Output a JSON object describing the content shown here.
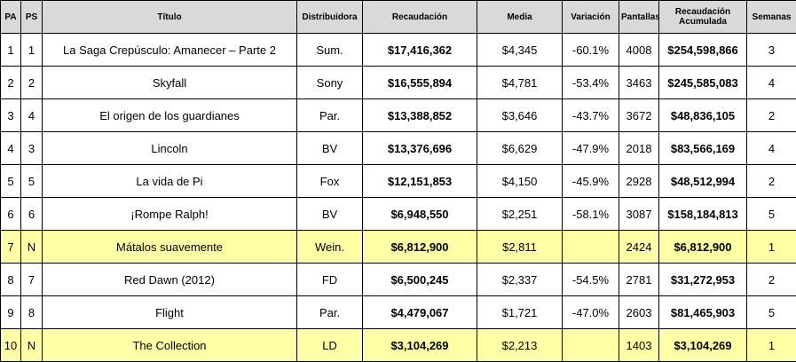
{
  "headers": {
    "pa": "PA",
    "ps": "PS",
    "title": "Título",
    "distributor": "Distribuidora",
    "gross": "Recaudación",
    "average": "Media",
    "change": "Variación",
    "screens": "Pantallas",
    "cumulative": "Recaudación Acumulada",
    "weeks": "Semanas"
  },
  "rows": [
    {
      "pa": "1",
      "ps": "1",
      "title": "La Saga Crepúsculo: Amanecer – Parte 2",
      "distributor": "Sum.",
      "gross": "$17,416,362",
      "average": "$4,345",
      "change": "-60.1%",
      "screens": "4008",
      "cumulative": "$254,598,866",
      "weeks": "3"
    },
    {
      "pa": "2",
      "ps": "2",
      "title": "Skyfall",
      "distributor": "Sony",
      "gross": "$16,555,894",
      "average": "$4,781",
      "change": "-53.4%",
      "screens": "3463",
      "cumulative": "$245,585,083",
      "weeks": "4"
    },
    {
      "pa": "3",
      "ps": "4",
      "title": "El origen de los guardianes",
      "distributor": "Par.",
      "gross": "$13,388,852",
      "average": "$3,646",
      "change": "-43.7%",
      "screens": "3672",
      "cumulative": "$48,836,105",
      "weeks": "2"
    },
    {
      "pa": "4",
      "ps": "3",
      "title": "Lincoln",
      "distributor": "BV",
      "gross": "$13,376,696",
      "average": "$6,629",
      "change": "-47.9%",
      "screens": "2018",
      "cumulative": "$83,566,169",
      "weeks": "4"
    },
    {
      "pa": "5",
      "ps": "5",
      "title": "La vida de Pi",
      "distributor": "Fox",
      "gross": "$12,151,853",
      "average": "$4,150",
      "change": "-45.9%",
      "screens": "2928",
      "cumulative": "$48,512,994",
      "weeks": "2"
    },
    {
      "pa": "6",
      "ps": "6",
      "title": "¡Rompe Ralph!",
      "distributor": "BV",
      "gross": "$6,948,550",
      "average": "$2,251",
      "change": "-58.1%",
      "screens": "3087",
      "cumulative": "$158,184,813",
      "weeks": "5"
    },
    {
      "pa": "7",
      "ps": "N",
      "title": "Mátalos suavemente",
      "distributor": "Wein.",
      "gross": "$6,812,900",
      "average": "$2,811",
      "change": "",
      "screens": "2424",
      "cumulative": "$6,812,900",
      "weeks": "1",
      "highlight": true
    },
    {
      "pa": "8",
      "ps": "7",
      "title": "Red Dawn (2012)",
      "distributor": "FD",
      "gross": "$6,500,245",
      "average": "$2,337",
      "change": "-54.5%",
      "screens": "2781",
      "cumulative": "$31,272,953",
      "weeks": "2"
    },
    {
      "pa": "9",
      "ps": "8",
      "title": "Flight",
      "distributor": "Par.",
      "gross": "$4,479,067",
      "average": "$1,721",
      "change": "-47.0%",
      "screens": "2603",
      "cumulative": "$81,465,903",
      "weeks": "5"
    },
    {
      "pa": "10",
      "ps": "N",
      "title": "The Collection",
      "distributor": "LD",
      "gross": "$3,104,269",
      "average": "$2,213",
      "change": "",
      "screens": "1403",
      "cumulative": "$3,104,269",
      "weeks": "1",
      "highlight": true
    }
  ],
  "colors": {
    "header_bg": "#d9d9d9",
    "highlight_bg": "#ffffa6",
    "border": "#000000"
  }
}
